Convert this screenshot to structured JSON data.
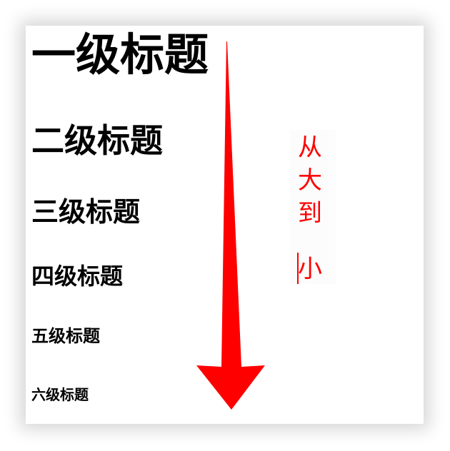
{
  "headings": {
    "h1": "一级标题",
    "h2": "二级标题",
    "h3": "三级标题",
    "h4": "四级标题",
    "h5": "五级标题",
    "h6": "六级标题"
  },
  "side_note": {
    "chars": [
      "从",
      "大",
      "到",
      "小"
    ]
  },
  "arrow": {
    "direction": "down",
    "color": "#ff0000"
  },
  "colors": {
    "heading_text": "#000000",
    "accent": "#ff0000",
    "background": "#ffffff"
  }
}
